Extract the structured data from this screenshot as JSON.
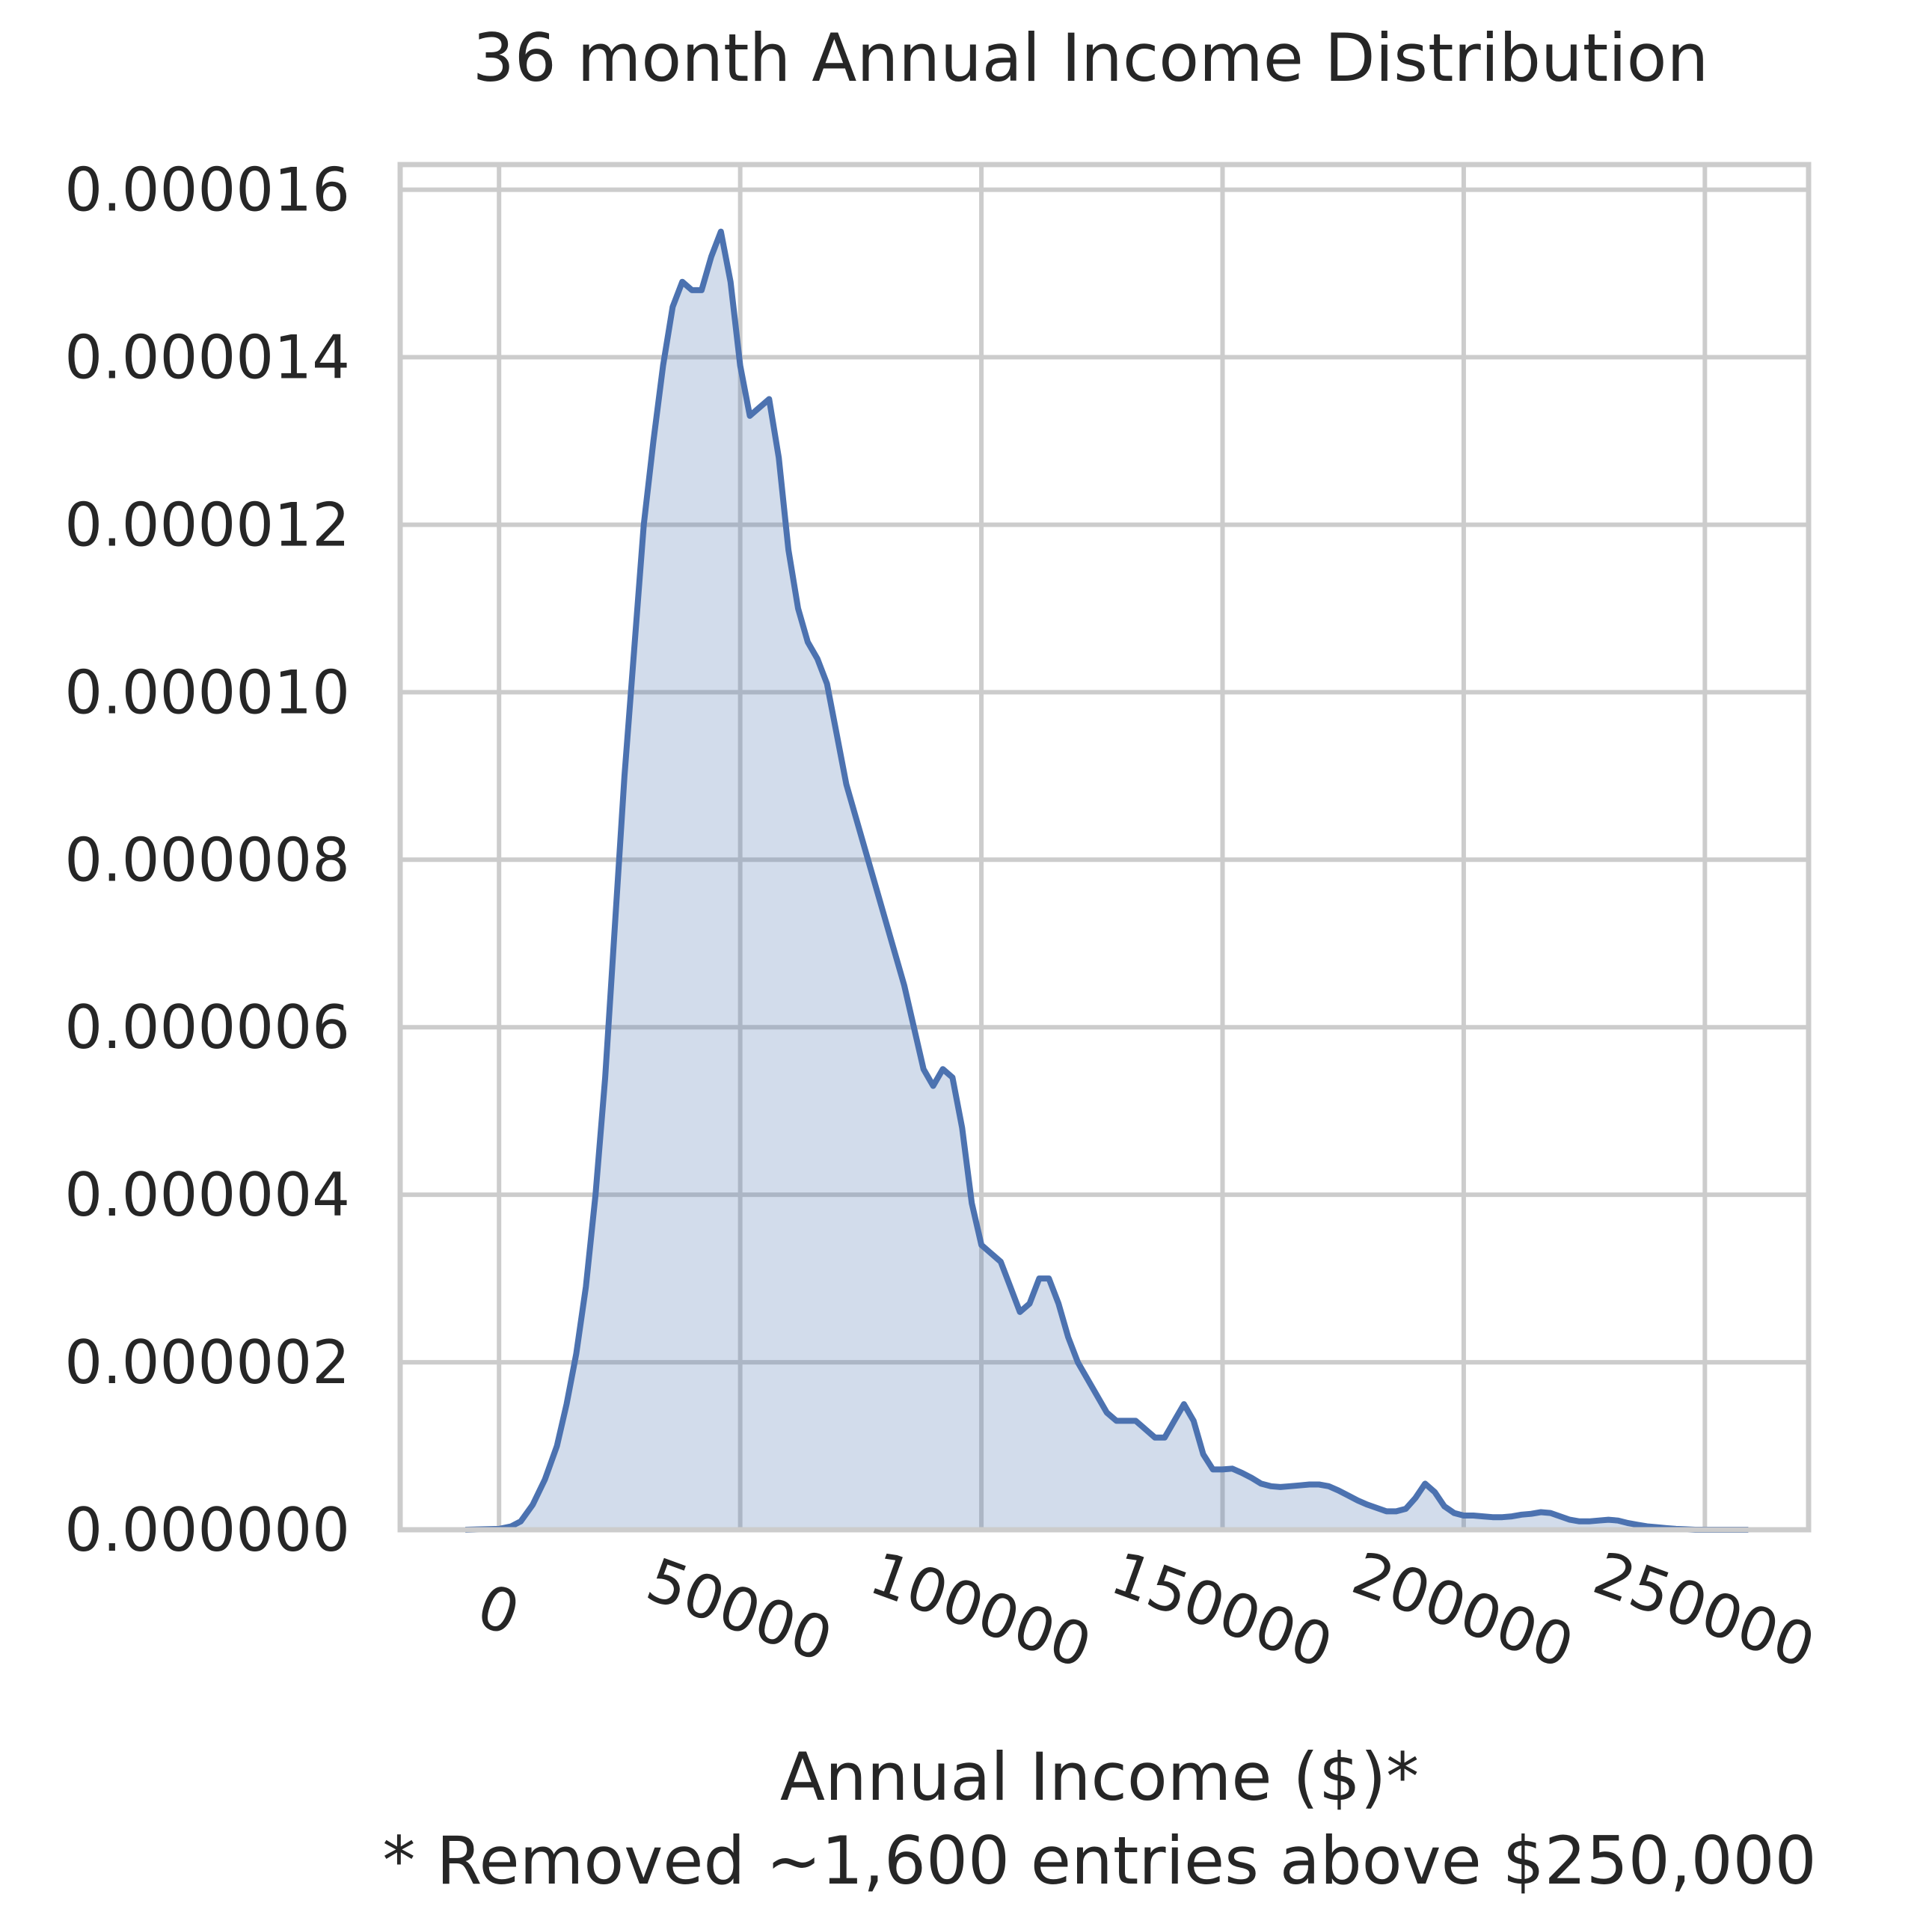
{
  "chart_data": {
    "type": "area",
    "title": "36 month Annual Income Distribution",
    "xlabel": "Annual Income ($)*",
    "footnote": "* Removed ~1,600 entries above $250,000",
    "ylabel": "",
    "xlim": [
      -20500,
      271500
    ],
    "ylim": [
      0,
      1.63e-05
    ],
    "x_ticks": [
      0,
      50000,
      100000,
      150000,
      200000,
      250000
    ],
    "x_tick_labels": [
      "0",
      "50000",
      "100000",
      "150000",
      "200000",
      "250000"
    ],
    "y_ticks": [
      0,
      2e-06,
      4e-06,
      6e-06,
      8e-06,
      1e-05,
      1.2e-05,
      1.4e-05,
      1.6e-05
    ],
    "y_tick_labels": [
      "0.000000",
      "0.000002",
      "0.000004",
      "0.000006",
      "0.000008",
      "0.000010",
      "0.000012",
      "0.000014",
      "0.000016"
    ],
    "grid": true,
    "line_color": "#4c72b0",
    "fill_color": "#4c72b0",
    "fill_opacity": 0.25,
    "series": [
      {
        "x": [
          -7000,
          0,
          2500,
          4500,
          7000,
          9500,
          12000,
          14000,
          16000,
          18000,
          20000,
          22000,
          24000,
          26000,
          28000,
          30000,
          32000,
          34000,
          36000,
          38000,
          40000,
          42000,
          44000,
          46000,
          48000,
          50000,
          52000,
          54000,
          56000,
          58000,
          60000,
          62000,
          64000,
          66000,
          68000,
          70000,
          72000,
          74000,
          76000,
          78000,
          80000,
          82000,
          84000,
          86000,
          88000,
          90000,
          92000,
          94000,
          96000,
          98000,
          100000,
          102000,
          104000,
          106000,
          108000,
          110000,
          112000,
          114000,
          116000,
          118000,
          120000,
          122000,
          124000,
          126000,
          128000,
          130000,
          132000,
          134000,
          136000,
          138000,
          140000,
          142000,
          144000,
          146000,
          148000,
          150000,
          152000,
          154000,
          156000,
          158000,
          160000,
          162000,
          164000,
          166000,
          168000,
          170000,
          172000,
          174000,
          176000,
          178000,
          180000,
          182000,
          184000,
          186000,
          188000,
          190000,
          192000,
          194000,
          196000,
          198000,
          200000,
          202000,
          204000,
          206000,
          208000,
          210000,
          212000,
          214000,
          216000,
          218000,
          220000,
          222000,
          224000,
          226000,
          228000,
          230000,
          232000,
          234000,
          236000,
          238000,
          240000,
          242000,
          244000,
          246000,
          248000,
          250000,
          253000,
          256000,
          259000
        ],
        "y": [
          0,
          1e-08,
          4e-08,
          1e-07,
          3e-07,
          6e-07,
          1e-06,
          1.5e-06,
          2.1e-06,
          2.9e-06,
          4e-06,
          5.4e-06,
          7.2e-06,
          9e-06,
          1.05e-05,
          1.2e-05,
          1.3e-05,
          1.39e-05,
          1.46e-05,
          1.49e-05,
          1.48e-05,
          1.48e-05,
          1.52e-05,
          1.55e-05,
          1.49e-05,
          1.39e-05,
          1.33e-05,
          1.34e-05,
          1.35e-05,
          1.28e-05,
          1.17e-05,
          1.1e-05,
          1.06e-05,
          1.04e-05,
          1.01e-05,
          9.5e-06,
          8.9e-06,
          8.5e-06,
          8.1e-06,
          7.7e-06,
          7.3e-06,
          6.9e-06,
          6.5e-06,
          6e-06,
          5.5e-06,
          5.3e-06,
          5.5e-06,
          5.4e-06,
          4.8e-06,
          3.9e-06,
          3.4e-06,
          3.3e-06,
          3.2e-06,
          2.9e-06,
          2.6e-06,
          2.7e-06,
          3e-06,
          3e-06,
          2.7e-06,
          2.3e-06,
          2e-06,
          1.8e-06,
          1.6e-06,
          1.4e-06,
          1.3e-06,
          1.3e-06,
          1.3e-06,
          1.2e-06,
          1.1e-06,
          1.1e-06,
          1.3e-06,
          1.5e-06,
          1.3e-06,
          9e-07,
          7.2e-07,
          7.2e-07,
          7.3e-07,
          6.8e-07,
          6.2e-07,
          5.5e-07,
          5.2e-07,
          5.1e-07,
          5.2e-07,
          5.3e-07,
          5.4e-07,
          5.4e-07,
          5.2e-07,
          4.7e-07,
          4.1e-07,
          3.5e-07,
          3e-07,
          2.6e-07,
          2.2e-07,
          2.2e-07,
          2.5e-07,
          3.8e-07,
          5.5e-07,
          4.5e-07,
          2.8e-07,
          2e-07,
          1.7e-07,
          1.7e-07,
          1.6e-07,
          1.5e-07,
          1.5e-07,
          1.6e-07,
          1.8e-07,
          1.9e-07,
          2.1e-07,
          2e-07,
          1.6e-07,
          1.2e-07,
          1e-07,
          1e-07,
          1.1e-07,
          1.2e-07,
          1.1e-07,
          8e-08,
          6e-08,
          4e-08,
          3e-08,
          2e-08,
          1e-08,
          5e-09,
          0,
          0,
          0,
          0,
          0
        ]
      }
    ]
  }
}
